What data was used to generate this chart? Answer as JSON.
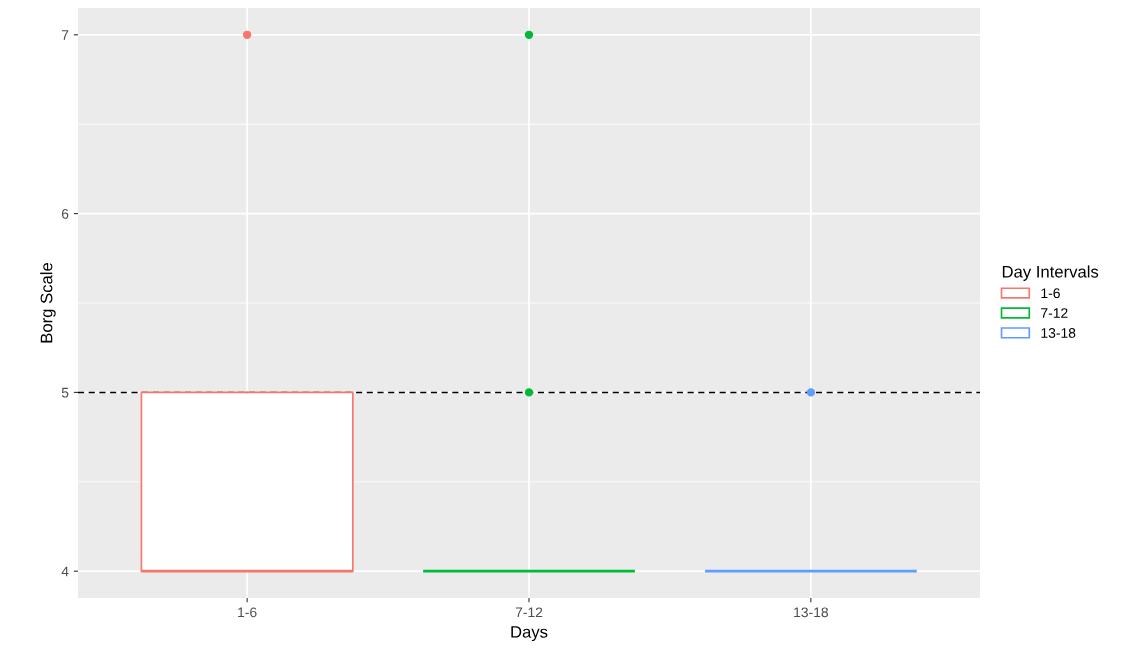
{
  "chart_data": {
    "type": "box",
    "xlabel": "Days",
    "ylabel": "Borg Scale",
    "legend_title": "Day Intervals",
    "legend": "right",
    "categories": [
      "1-6",
      "7-12",
      "13-18"
    ],
    "series": [
      {
        "name": "1-6",
        "color": "#f8766d",
        "boxes": [
          {
            "low": 4,
            "q1": 4,
            "median": 4,
            "q3": 5,
            "high": 5,
            "outliers": [
              7
            ]
          },
          null,
          null
        ]
      },
      {
        "name": "7-12",
        "color": "#00ba38",
        "boxes": [
          null,
          {
            "low": 4,
            "q1": 4,
            "median": 4,
            "q3": 4,
            "high": 4,
            "outliers": [
              5,
              7
            ]
          },
          null
        ]
      },
      {
        "name": "13-18",
        "color": "#619cff",
        "boxes": [
          null,
          null,
          {
            "low": 4,
            "q1": 4,
            "median": 4,
            "q3": 4,
            "high": 4,
            "outliers": [
              5
            ]
          }
        ]
      }
    ],
    "ylim": [
      3.85,
      7.15
    ],
    "yticks": [
      4,
      5,
      6,
      7
    ],
    "grid": true,
    "ref_lines": [
      {
        "axis": "y",
        "value": 5,
        "color": "#000000",
        "line_style": "dashed"
      }
    ]
  }
}
